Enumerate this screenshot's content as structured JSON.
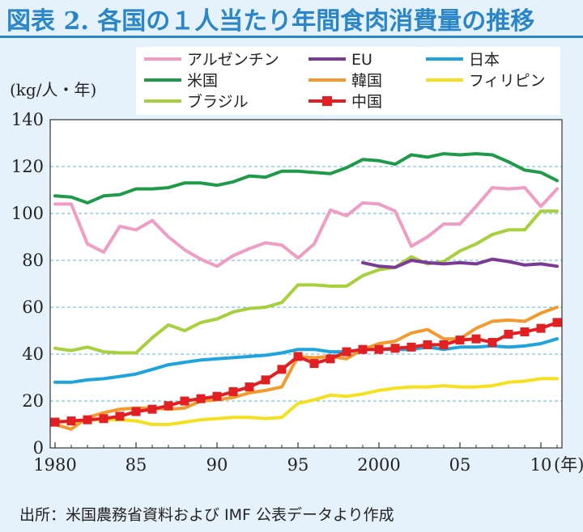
{
  "title": "図表 2. 各国の１人当たり年間食肉消費量の推移",
  "source": "出所：米国農務省資料および IMF 公表データより作成",
  "chart_data": {
    "type": "line",
    "ylabel": "(kg/人・年)",
    "xunit": "(年)",
    "ylim": [
      0,
      140
    ],
    "yticks": [
      0,
      20,
      40,
      60,
      80,
      100,
      120,
      140
    ],
    "xlim": [
      1980,
      2011
    ],
    "xticks": [
      {
        "value": 1980,
        "label": "1980"
      },
      {
        "value": 1985,
        "label": "85"
      },
      {
        "value": 1990,
        "label": "90"
      },
      {
        "value": 1995,
        "label": "95"
      },
      {
        "value": 2000,
        "label": "2000"
      },
      {
        "value": 2005,
        "label": "05"
      },
      {
        "value": 2010,
        "label": "10"
      }
    ],
    "grid": true,
    "legend_position": "top-right",
    "series": [
      {
        "name": "アルゼンチン",
        "color": "#f09cc4",
        "marker": false,
        "x": [
          1980,
          1981,
          1982,
          1983,
          1984,
          1985,
          1986,
          1987,
          1988,
          1989,
          1990,
          1991,
          1992,
          1993,
          1994,
          1995,
          1996,
          1997,
          1998,
          1999,
          2000,
          2001,
          2002,
          2003,
          2004,
          2005,
          2006,
          2007,
          2008,
          2009,
          2010,
          2011
        ],
        "y": [
          104,
          104,
          87,
          83.5,
          94.5,
          93,
          97,
          90,
          84.5,
          80.5,
          77.5,
          82,
          85,
          87.5,
          86.5,
          81,
          87,
          101.5,
          99,
          104.5,
          104,
          101,
          86,
          90,
          95.5,
          95.5,
          103,
          111,
          110.5,
          111,
          103,
          110.5
        ]
      },
      {
        "name": "米国",
        "color": "#1e9a48",
        "marker": false,
        "x": [
          1980,
          1981,
          1982,
          1983,
          1984,
          1985,
          1986,
          1987,
          1988,
          1989,
          1990,
          1991,
          1992,
          1993,
          1994,
          1995,
          1996,
          1997,
          1998,
          1999,
          2000,
          2001,
          2002,
          2003,
          2004,
          2005,
          2006,
          2007,
          2008,
          2009,
          2010,
          2011
        ],
        "y": [
          107.5,
          107,
          104.5,
          107.5,
          108,
          110.5,
          110.5,
          111,
          113,
          113,
          112,
          113.5,
          116,
          115.5,
          118,
          118,
          117.5,
          117,
          119.5,
          123,
          122.5,
          121,
          125,
          124,
          125.5,
          125,
          125.5,
          125,
          122,
          118.5,
          117.5,
          114
        ]
      },
      {
        "name": "ブラジル",
        "color": "#a8cf3c",
        "marker": false,
        "x": [
          1980,
          1981,
          1982,
          1983,
          1984,
          1985,
          1986,
          1987,
          1988,
          1989,
          1990,
          1991,
          1992,
          1993,
          1994,
          1995,
          1996,
          1997,
          1998,
          1999,
          2000,
          2001,
          2002,
          2003,
          2004,
          2005,
          2006,
          2007,
          2008,
          2009,
          2010,
          2011
        ],
        "y": [
          42.5,
          41.5,
          43,
          41,
          40.5,
          40.5,
          47,
          52.5,
          50,
          53.5,
          55,
          58,
          59.5,
          60,
          62,
          69.5,
          69.5,
          69,
          69,
          73.5,
          76,
          77,
          81.5,
          78.5,
          79.5,
          84,
          87,
          91,
          93,
          93,
          101,
          101
        ]
      },
      {
        "name": "EU",
        "color": "#7a3a96",
        "marker": false,
        "x": [
          1999,
          2000,
          2001,
          2002,
          2003,
          2004,
          2005,
          2006,
          2007,
          2008,
          2009,
          2010,
          2011
        ],
        "y": [
          79,
          77.5,
          77,
          80,
          79,
          78.5,
          79,
          78.5,
          80.5,
          79.5,
          78,
          78.5,
          77.5
        ]
      },
      {
        "name": "韓国",
        "color": "#f29a2e",
        "marker": false,
        "x": [
          1980,
          1981,
          1982,
          1983,
          1984,
          1985,
          1986,
          1987,
          1988,
          1989,
          1990,
          1991,
          1992,
          1993,
          1994,
          1995,
          1996,
          1997,
          1998,
          1999,
          2000,
          2001,
          2002,
          2003,
          2004,
          2005,
          2006,
          2007,
          2008,
          2009,
          2010,
          2011
        ],
        "y": [
          10,
          8,
          13,
          15,
          16.5,
          17,
          17,
          16.5,
          17,
          20,
          20.5,
          21.5,
          23.5,
          24.5,
          26,
          39,
          38.5,
          39,
          38,
          42,
          44.5,
          45.5,
          49,
          50.5,
          46.5,
          46.5,
          51,
          54,
          54.5,
          54,
          57.5,
          60
        ]
      },
      {
        "name": "中国",
        "color": "#e02022",
        "marker": true,
        "x": [
          1980,
          1981,
          1982,
          1983,
          1984,
          1985,
          1986,
          1987,
          1988,
          1989,
          1990,
          1991,
          1992,
          1993,
          1994,
          1995,
          1996,
          1997,
          1998,
          1999,
          2000,
          2001,
          2002,
          2003,
          2004,
          2005,
          2006,
          2007,
          2008,
          2009,
          2010,
          2011
        ],
        "y": [
          11,
          11.5,
          12,
          12.5,
          13.5,
          15.5,
          16.5,
          18,
          20,
          21,
          22,
          24,
          26,
          29,
          33.5,
          39,
          36,
          38,
          41,
          42,
          42,
          42.5,
          43,
          44,
          44,
          46,
          46.5,
          45,
          48.5,
          49.5,
          51,
          53.5
        ]
      },
      {
        "name": "日本",
        "color": "#1fa3dc",
        "marker": false,
        "x": [
          1980,
          1981,
          1982,
          1983,
          1984,
          1985,
          1986,
          1987,
          1988,
          1989,
          1990,
          1991,
          1992,
          1993,
          1994,
          1995,
          1996,
          1997,
          1998,
          1999,
          2000,
          2001,
          2002,
          2003,
          2004,
          2005,
          2006,
          2007,
          2008,
          2009,
          2010,
          2011
        ],
        "y": [
          28,
          28,
          29,
          29.5,
          30.5,
          31.5,
          33.5,
          35.5,
          36.5,
          37.5,
          38,
          38.5,
          39,
          39.5,
          40.5,
          42,
          42,
          41,
          41,
          42,
          42,
          42,
          42,
          43,
          42,
          43,
          43,
          43.5,
          43,
          43.5,
          44.5,
          46.5
        ]
      },
      {
        "name": "フィリピン",
        "color": "#f5e020",
        "marker": false,
        "x": [
          1980,
          1981,
          1982,
          1983,
          1984,
          1985,
          1986,
          1987,
          1988,
          1989,
          1990,
          1991,
          1992,
          1993,
          1994,
          1995,
          1996,
          1997,
          1998,
          1999,
          2000,
          2001,
          2002,
          2003,
          2004,
          2005,
          2006,
          2007,
          2008,
          2009,
          2010,
          2011
        ],
        "y": [
          11.5,
          11,
          12,
          12,
          12,
          11.5,
          10,
          10,
          11,
          12,
          12.5,
          13,
          13,
          12.5,
          13,
          19,
          20.5,
          22.5,
          22,
          23,
          24.5,
          25.5,
          26,
          26,
          26.5,
          26,
          26,
          26.5,
          28,
          28.5,
          29.5,
          29.5
        ]
      }
    ],
    "legend_rows": [
      [
        "アルゼンチン",
        "EU",
        "日本"
      ],
      [
        "米国",
        "韓国",
        "フィリピン"
      ],
      [
        "ブラジル",
        "中国"
      ]
    ]
  }
}
